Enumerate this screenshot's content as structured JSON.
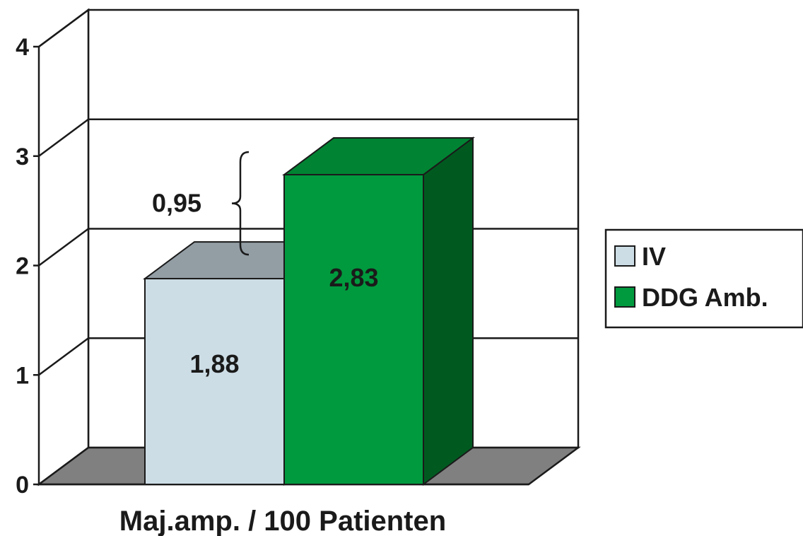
{
  "chart_data": {
    "type": "bar",
    "xlabel": "Maj.amp. / 100 Patienten",
    "categories": [
      "Maj.amp. / 100 Patienten"
    ],
    "series": [
      {
        "name": "IV",
        "value": 1.88,
        "label": "1,88",
        "color": "#cddde6"
      },
      {
        "name": "DDG Amb.",
        "value": 2.83,
        "label": "2,83",
        "color": "#009a3e"
      }
    ],
    "ylim": [
      0,
      4
    ],
    "yticks": [
      "0",
      "1",
      "2",
      "3",
      "4"
    ],
    "difference_label": "0,95",
    "grid": true,
    "legend_position": "right",
    "style": "3d"
  }
}
